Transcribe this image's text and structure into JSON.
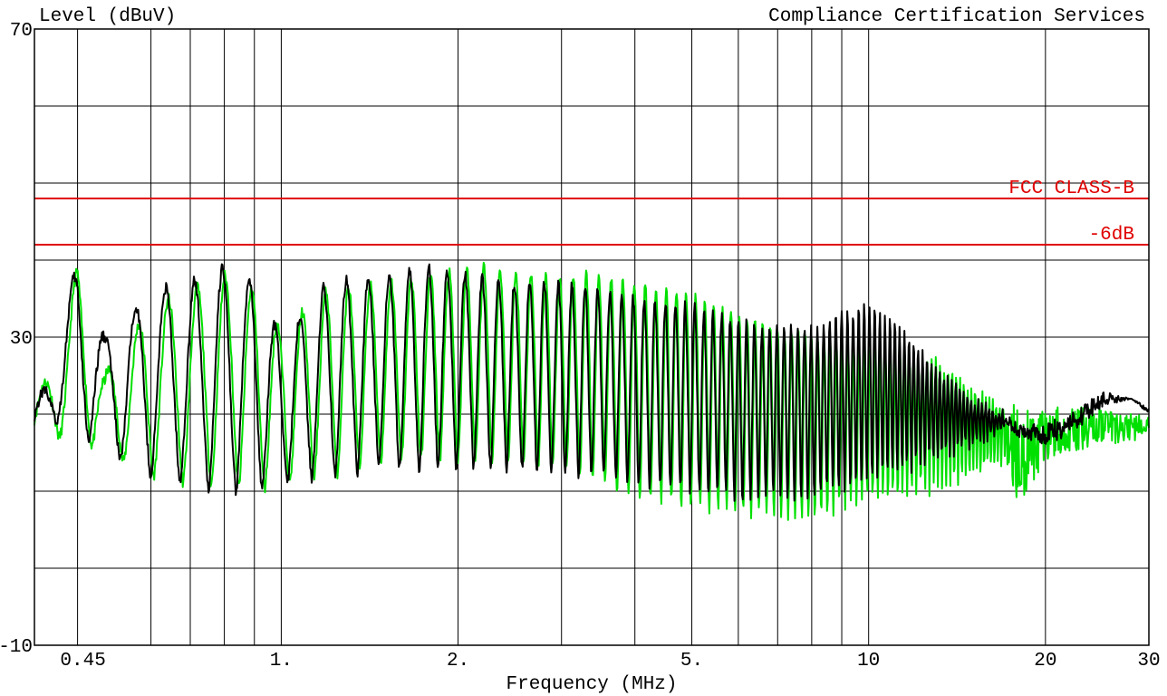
{
  "chart_data": {
    "type": "line",
    "title": "Compliance Certification Services",
    "ylabel": "Level (dBuV)",
    "xlabel": "Frequency (MHz)",
    "x_scale": "log",
    "xlim": [
      0.38,
      30
    ],
    "ylim": [
      -10,
      70
    ],
    "grid": true,
    "y_ticks": [
      70,
      30,
      -10
    ],
    "x_ticks": [
      {
        "value": 0.45,
        "label": "0.45"
      },
      {
        "value": 1,
        "label": "1."
      },
      {
        "value": 2,
        "label": "2."
      },
      {
        "value": 5,
        "label": "5."
      },
      {
        "value": 10,
        "label": "10"
      },
      {
        "value": 20,
        "label": "20"
      },
      {
        "value": 30,
        "label": "30"
      }
    ],
    "x_gridlines": [
      0.45,
      0.6,
      0.7,
      0.8,
      0.9,
      1,
      2,
      3,
      4,
      5,
      6,
      7,
      8,
      9,
      10,
      20
    ],
    "y_gridlines": [
      60,
      50,
      40,
      30,
      20,
      10,
      0
    ],
    "limit_lines": [
      {
        "name": "FCC CLASS-B",
        "value": 48,
        "color": "#e00000"
      },
      {
        "name": "-6dB",
        "value": 42,
        "color": "#e00000"
      }
    ],
    "series": [
      {
        "color": "#00e000",
        "envelope": [
          [
            0.38,
            17,
            21
          ],
          [
            0.42,
            17,
            29
          ],
          [
            0.45,
            17,
            39
          ],
          [
            0.5,
            15,
            25
          ],
          [
            0.6,
            12,
            34
          ],
          [
            0.7,
            11,
            36
          ],
          [
            0.8,
            11,
            38
          ],
          [
            0.9,
            10,
            36
          ],
          [
            1.0,
            11,
            31
          ],
          [
            1.2,
            12,
            36
          ],
          [
            1.5,
            14,
            37
          ],
          [
            1.8,
            14,
            38
          ],
          [
            2.2,
            14,
            39
          ],
          [
            2.5,
            14,
            38
          ],
          [
            3.0,
            13,
            38
          ],
          [
            3.5,
            11,
            38
          ],
          [
            4.0,
            9,
            37
          ],
          [
            5.0,
            8,
            36
          ],
          [
            6.0,
            7,
            33
          ],
          [
            7.0,
            7,
            31
          ],
          [
            8.0,
            6,
            30
          ],
          [
            9.0,
            8,
            29
          ],
          [
            10.0,
            9,
            29
          ],
          [
            11.0,
            9,
            28
          ],
          [
            12.0,
            10,
            27
          ],
          [
            13.0,
            10,
            27
          ],
          [
            14.0,
            11,
            25
          ],
          [
            15.0,
            12,
            23
          ],
          [
            16.0,
            13,
            22
          ],
          [
            17.0,
            14,
            21
          ],
          [
            18.0,
            8,
            22
          ],
          [
            20.0,
            14,
            21
          ],
          [
            22.0,
            15,
            21
          ],
          [
            25.0,
            16,
            21
          ],
          [
            28.0,
            16,
            20
          ],
          [
            30.0,
            18,
            20
          ]
        ]
      },
      {
        "color": "#000000",
        "envelope": [
          [
            0.38,
            19,
            20
          ],
          [
            0.42,
            19,
            30
          ],
          [
            0.45,
            18,
            40
          ],
          [
            0.5,
            15,
            30
          ],
          [
            0.6,
            12,
            36
          ],
          [
            0.7,
            11,
            37
          ],
          [
            0.8,
            10,
            39
          ],
          [
            0.9,
            10,
            37
          ],
          [
            1.0,
            11,
            30
          ],
          [
            1.2,
            12,
            37
          ],
          [
            1.5,
            13,
            38
          ],
          [
            1.8,
            13,
            39
          ],
          [
            2.2,
            13,
            38
          ],
          [
            2.5,
            13,
            37
          ],
          [
            3.0,
            12,
            37
          ],
          [
            3.5,
            12,
            36
          ],
          [
            4.0,
            11,
            35
          ],
          [
            5.0,
            10,
            34
          ],
          [
            6.0,
            9,
            32
          ],
          [
            7.0,
            9,
            31
          ],
          [
            8.0,
            9,
            31
          ],
          [
            9.0,
            10,
            33
          ],
          [
            10.0,
            11,
            34
          ],
          [
            11.0,
            12,
            32
          ],
          [
            12.0,
            13,
            29
          ],
          [
            13.0,
            14,
            26
          ],
          [
            14.0,
            15,
            24
          ],
          [
            15.0,
            16,
            22
          ],
          [
            16.0,
            17,
            21
          ],
          [
            17.0,
            18,
            20
          ],
          [
            18.0,
            17,
            19
          ],
          [
            20.0,
            16,
            19
          ],
          [
            22.0,
            17,
            20
          ],
          [
            25.0,
            21,
            23
          ],
          [
            28.0,
            22,
            22
          ],
          [
            30.0,
            20,
            21
          ]
        ]
      }
    ]
  }
}
